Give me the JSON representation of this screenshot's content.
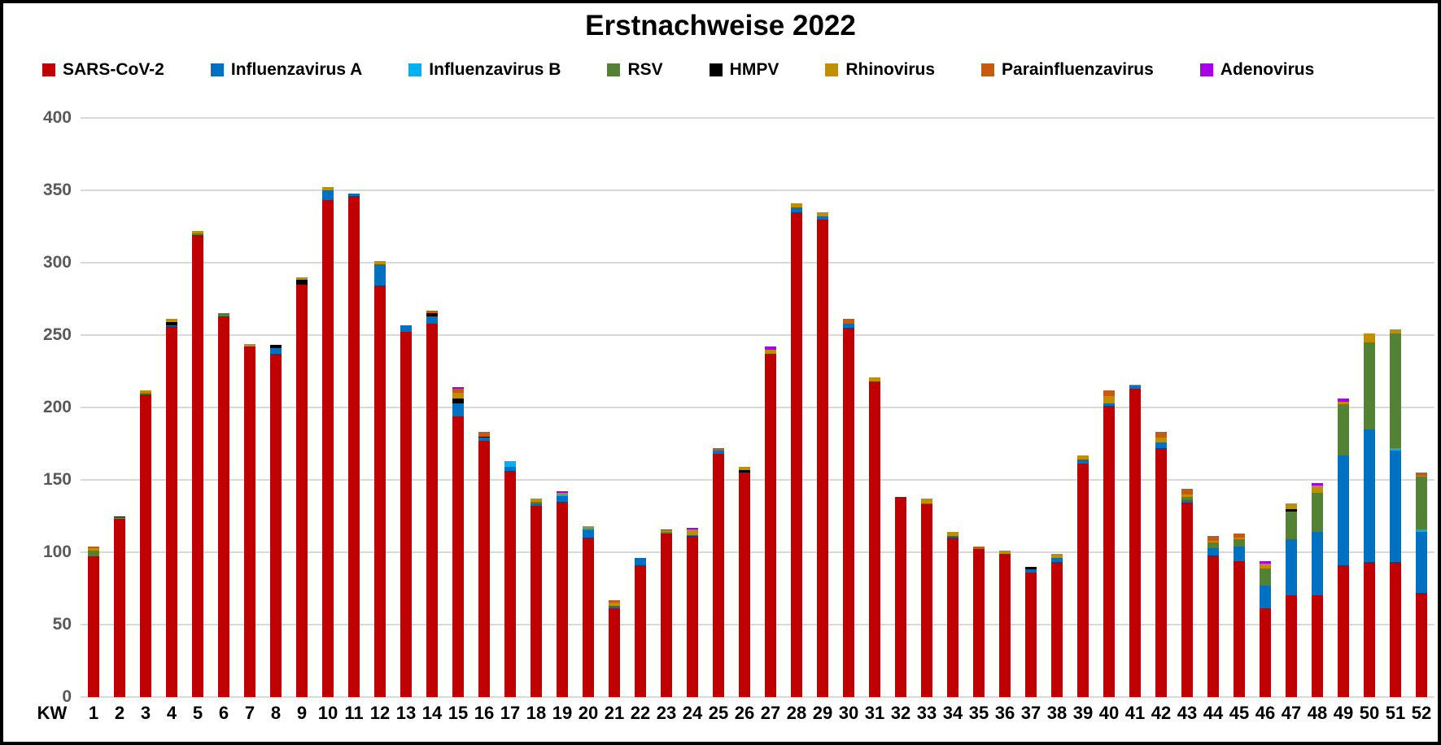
{
  "chart_data": {
    "type": "bar",
    "stacked": true,
    "title": "Erstnachweise 2022",
    "xlabel": "KW",
    "ylabel": "",
    "ylim": [
      0,
      400
    ],
    "ytick_step": 50,
    "grid": true,
    "legend_position": "top",
    "axis_colors": {
      "gridline": "#d9d9d9",
      "y_tick_text": "#595959",
      "x_tick_text": "#000000"
    },
    "categories": [
      1,
      2,
      3,
      4,
      5,
      6,
      7,
      8,
      9,
      10,
      11,
      12,
      13,
      14,
      15,
      16,
      17,
      18,
      19,
      20,
      21,
      22,
      23,
      24,
      25,
      26,
      27,
      28,
      29,
      30,
      31,
      32,
      33,
      34,
      35,
      36,
      37,
      38,
      39,
      40,
      41,
      42,
      43,
      44,
      45,
      46,
      47,
      48,
      49,
      50,
      51,
      52
    ],
    "series": [
      {
        "name": "SARS-CoV-2",
        "color": "#C00000",
        "values": [
          97,
          123,
          209,
          256,
          319,
          263,
          242,
          237,
          285,
          343,
          346,
          284,
          252,
          258,
          194,
          177,
          156,
          132,
          135,
          110,
          61,
          91,
          113,
          111,
          168,
          155,
          237,
          335,
          330,
          255,
          218,
          138,
          133,
          110,
          102,
          99,
          86,
          93,
          161,
          201,
          213,
          172,
          134,
          98,
          94,
          61,
          70,
          70,
          91,
          93,
          93,
          72
        ]
      },
      {
        "name": "Influenzavirus A",
        "color": "#0070C0",
        "values": [
          0,
          0,
          0,
          1,
          0,
          0,
          0,
          4,
          0,
          7,
          2,
          15,
          5,
          5,
          9,
          2,
          3,
          2,
          4,
          6,
          2,
          5,
          0,
          1,
          2,
          0,
          0,
          3,
          2,
          3,
          0,
          0,
          1,
          1,
          0,
          0,
          2,
          3,
          3,
          2,
          2,
          4,
          2,
          5,
          10,
          16,
          39,
          44,
          76,
          92,
          77,
          42
        ]
      },
      {
        "name": "Influenzavirus B",
        "color": "#00B0F0",
        "values": [
          0,
          0,
          0,
          0,
          0,
          0,
          0,
          0,
          0,
          0,
          0,
          0,
          0,
          0,
          0,
          0,
          4,
          0,
          1,
          1,
          0,
          0,
          0,
          0,
          0,
          0,
          0,
          0,
          0,
          0,
          0,
          0,
          0,
          0,
          0,
          0,
          0,
          0,
          0,
          0,
          0,
          0,
          0,
          0,
          0,
          0,
          0,
          0,
          0,
          0,
          2,
          2
        ]
      },
      {
        "name": "RSV",
        "color": "#548235",
        "values": [
          4,
          1,
          1,
          0,
          1,
          2,
          0,
          0,
          0,
          0,
          0,
          0,
          0,
          0,
          0,
          0,
          0,
          1,
          0,
          0,
          0,
          0,
          1,
          0,
          0,
          0,
          0,
          0,
          0,
          0,
          0,
          0,
          0,
          0,
          0,
          0,
          0,
          0,
          0,
          0,
          0,
          0,
          2,
          4,
          5,
          12,
          19,
          27,
          35,
          60,
          79,
          36
        ]
      },
      {
        "name": "HMPV",
        "color": "#000000",
        "values": [
          0,
          1,
          0,
          2,
          0,
          0,
          0,
          2,
          3,
          0,
          0,
          0,
          0,
          2,
          3,
          1,
          0,
          0,
          0,
          0,
          0,
          0,
          0,
          0,
          0,
          2,
          0,
          0,
          0,
          0,
          0,
          0,
          0,
          0,
          0,
          0,
          2,
          0,
          0,
          0,
          0,
          0,
          0,
          0,
          0,
          0,
          2,
          0,
          0,
          0,
          0,
          0
        ]
      },
      {
        "name": "Rhinovirus",
        "color": "#BF8F00",
        "values": [
          2,
          0,
          2,
          2,
          2,
          0,
          2,
          0,
          2,
          2,
          0,
          2,
          0,
          0,
          4,
          0,
          0,
          2,
          1,
          1,
          2,
          0,
          1,
          4,
          0,
          2,
          3,
          3,
          3,
          0,
          3,
          0,
          3,
          3,
          0,
          2,
          0,
          3,
          3,
          5,
          1,
          3,
          2,
          1,
          1,
          3,
          4,
          5,
          2,
          6,
          3,
          1
        ]
      },
      {
        "name": "Parainfluenzavirus",
        "color": "#C55A11",
        "values": [
          1,
          0,
          0,
          0,
          0,
          0,
          0,
          0,
          0,
          0,
          0,
          0,
          0,
          2,
          3,
          3,
          0,
          0,
          0,
          0,
          2,
          0,
          0,
          0,
          2,
          0,
          0,
          0,
          0,
          3,
          0,
          0,
          0,
          0,
          2,
          0,
          0,
          0,
          0,
          4,
          0,
          4,
          4,
          3,
          3,
          0,
          0,
          0,
          0,
          0,
          0,
          2
        ]
      },
      {
        "name": "Adenovirus",
        "color": "#A800E6",
        "values": [
          0,
          0,
          0,
          0,
          0,
          0,
          0,
          0,
          0,
          0,
          0,
          0,
          0,
          0,
          1,
          0,
          0,
          0,
          1,
          0,
          0,
          0,
          1,
          1,
          0,
          0,
          2,
          0,
          0,
          0,
          0,
          0,
          0,
          0,
          0,
          0,
          0,
          0,
          0,
          0,
          0,
          0,
          0,
          0,
          0,
          2,
          0,
          2,
          2,
          0,
          0,
          0
        ]
      }
    ]
  }
}
